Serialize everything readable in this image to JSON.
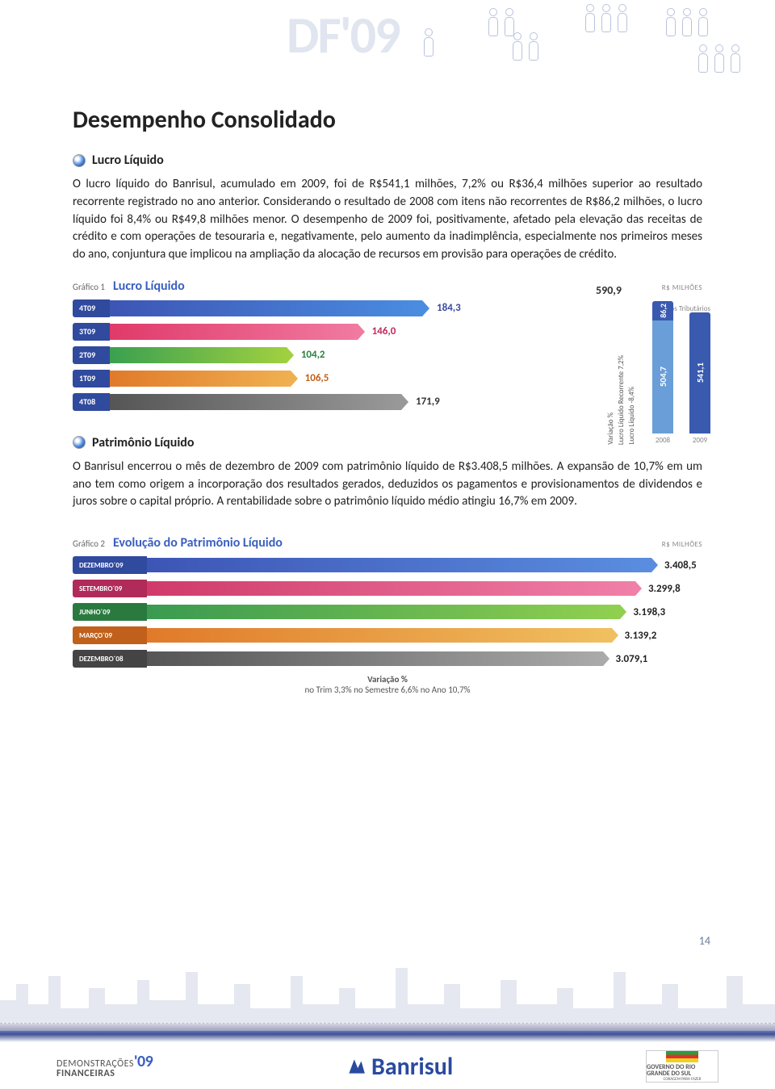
{
  "header": {
    "logo_text": "DF'09"
  },
  "page": {
    "title": "Desempenho Consolidado",
    "page_number": "14"
  },
  "sections": {
    "lucro": {
      "heading": "Lucro Líquido",
      "body": "O lucro líquido do Banrisul, acumulado em 2009, foi de R$541,1 milhões, 7,2% ou R$36,4 milhões superior ao resultado recorrente registrado no ano anterior. Considerando o resultado de 2008 com itens não recorrentes de R$86,2 milhões, o lucro líquido foi 8,4% ou R$49,8 milhões menor. O desempenho de 2009 foi, positivamente, afetado pela elevação das receitas de crédito e com operações de tesouraria e, negativamente, pelo aumento da inadimplência, especialmente nos primeiros meses do ano, conjuntura que implicou na ampliação da alocação de recursos em provisão para operações de crédito."
    },
    "patrimonio": {
      "heading": "Patrimônio Líquido",
      "body": "O Banrisul encerrou o mês de dezembro de 2009 com patrimônio líquido de R$3.408,5 milhões. A expansão de 10,7% em um ano tem como origem a incorporação dos resultados gerados, deduzidos os pagamentos e provisionamentos de dividendos e juros sobre o capital próprio. A rentabilidade sobre o patrimônio líquido médio atingiu 16,7% em 2009."
    }
  },
  "chart1": {
    "prefix": "Gráfico 1",
    "title": "Lucro Líquido",
    "unit": "R$ MILHÕES",
    "top_value": "590,9",
    "side_note": "Créditos Tributários",
    "max": 200,
    "bars": [
      {
        "label": "4T09",
        "value": "184,3",
        "num": 184.3,
        "grad": [
          "#3d55b5",
          "#4a8de0"
        ],
        "val_color": "#3a4aa0"
      },
      {
        "label": "3T09",
        "value": "146,0",
        "num": 146.0,
        "grad": [
          "#e03a6a",
          "#f07aa0"
        ],
        "val_color": "#c02a5a"
      },
      {
        "label": "2T09",
        "value": "104,2",
        "num": 104.2,
        "grad": [
          "#3aa050",
          "#a0d040"
        ],
        "val_color": "#2a8040"
      },
      {
        "label": "1T09",
        "value": "106,5",
        "num": 106.5,
        "grad": [
          "#e07a2a",
          "#f0b050"
        ],
        "val_color": "#c0601a"
      },
      {
        "label": "4T08",
        "value": "171,9",
        "num": 171.9,
        "grad": [
          "#555",
          "#999"
        ],
        "val_color": "#333"
      }
    ],
    "var_labels": {
      "title": "Variação %",
      "l1": "Lucro Líquido Recorrente 7,2%",
      "l2": "Lucro Líquido -8,4%"
    },
    "vbars": {
      "y2008": {
        "label": "2008",
        "base": "504,7",
        "top": "86,2",
        "base_h": 140,
        "top_h": 24,
        "base_c": "#6a9ed8",
        "top_c": "#3a5ab0"
      },
      "y2009": {
        "label": "2009",
        "base": "541,1",
        "base_h": 150,
        "base_c": "#3a5ab0"
      }
    }
  },
  "chart2": {
    "prefix": "Gráfico 2",
    "title": "Evolução do Patrimônio Líquido",
    "unit": "R$ MILHÕES",
    "max": 3600,
    "bars": [
      {
        "label": "DEZEMBRO´09",
        "value": "3.408,5",
        "num": 3408.5,
        "grad": [
          "#3d55b5",
          "#5a8de0"
        ],
        "cap_bg": "#304a9e"
      },
      {
        "label": "SETEMBRO´09",
        "value": "3.299,8",
        "num": 3299.8,
        "grad": [
          "#d03a6a",
          "#f080a8"
        ],
        "cap_bg": "#b02a5a"
      },
      {
        "label": "JUNHO´09",
        "value": "3.198,3",
        "num": 3198.3,
        "grad": [
          "#3a9a50",
          "#90d050"
        ],
        "cap_bg": "#2a7a40"
      },
      {
        "label": "MARÇO´09",
        "value": "3.139,2",
        "num": 3139.2,
        "grad": [
          "#e07a2a",
          "#f0c060"
        ],
        "cap_bg": "#c0601a"
      },
      {
        "label": "DEZEMBRO´08",
        "value": "3.079,1",
        "num": 3079.1,
        "grad": [
          "#555",
          "#aaa"
        ],
        "cap_bg": "#444"
      }
    ],
    "var_line": {
      "title": "Variação %",
      "parts": [
        "no Trim  3,3%",
        "no Semestre  6,6%",
        "no Ano  10,7%"
      ]
    }
  },
  "footer": {
    "dem_top": "DEMONSTRAÇÕES",
    "dem_bot": "FINANCEIRAS",
    "dem_year": "'09",
    "brand": "Banrisul",
    "rs_top": "GOVERNO DO",
    "rs_mid": "RIO GRANDE",
    "rs_bot": "DO SUL",
    "rs_tag": "CORAGEM PARA FAZER"
  }
}
